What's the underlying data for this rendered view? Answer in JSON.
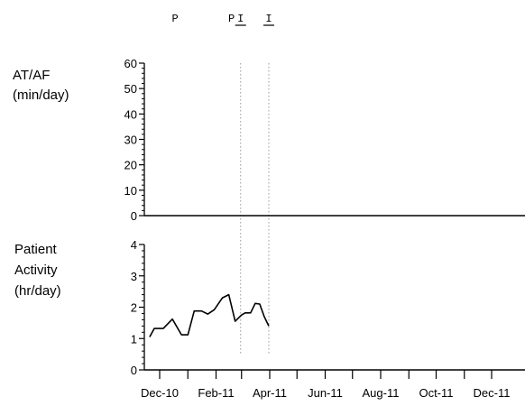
{
  "chart_data": [
    {
      "type": "line",
      "ylabel": [
        "AT/AF",
        "(min/day)"
      ],
      "ylim": [
        0,
        60
      ],
      "yticks": [
        0,
        10,
        20,
        30,
        40,
        50,
        60
      ],
      "series": [
        {
          "x": [
            "2010-12-01",
            "2011-12-31"
          ],
          "values": [
            0,
            0
          ]
        }
      ]
    },
    {
      "type": "line",
      "ylabel": [
        "Patient",
        "Activity",
        "(hr/day)"
      ],
      "ylim": [
        0,
        4
      ],
      "yticks": [
        0,
        1,
        2,
        3,
        4
      ],
      "xlim": [
        "2010-11-15",
        "2011-12-31"
      ],
      "xtick_labels": [
        "Dec-10",
        "Feb-11",
        "Apr-11",
        "Jun-11",
        "Aug-11",
        "Oct-11",
        "Dec-11"
      ],
      "xtick_dates": [
        "2010-12-01",
        "2011-02-01",
        "2011-04-01",
        "2011-06-01",
        "2011-08-01",
        "2011-10-01",
        "2011-12-01"
      ],
      "series": [
        {
          "x": [
            "2010-11-20",
            "2010-11-25",
            "2010-12-05",
            "2010-12-15",
            "2010-12-25",
            "2011-01-01",
            "2011-01-08",
            "2011-01-16",
            "2011-01-23",
            "2011-01-30",
            "2011-02-08",
            "2011-02-15",
            "2011-02-22",
            "2011-03-01",
            "2011-03-05",
            "2011-03-11",
            "2011-03-16",
            "2011-03-21",
            "2011-03-26",
            "2011-03-31"
          ],
          "values": [
            1.05,
            1.32,
            1.32,
            1.62,
            1.12,
            1.12,
            1.88,
            1.88,
            1.78,
            1.92,
            2.3,
            2.4,
            1.55,
            1.75,
            1.82,
            1.82,
            2.12,
            2.1,
            1.7,
            1.4
          ]
        }
      ]
    }
  ],
  "markers": [
    {
      "label": "P",
      "date": "2010-12-18",
      "underline": false
    },
    {
      "label": "P",
      "date": "2011-02-18",
      "underline": false
    },
    {
      "label": "I",
      "date": "2011-02-28",
      "underline": true
    },
    {
      "label": "I",
      "date": "2011-03-31",
      "underline": true
    }
  ],
  "colors": {
    "line": "#000000",
    "axis": "#000000",
    "guide": "#9a9a9a"
  }
}
